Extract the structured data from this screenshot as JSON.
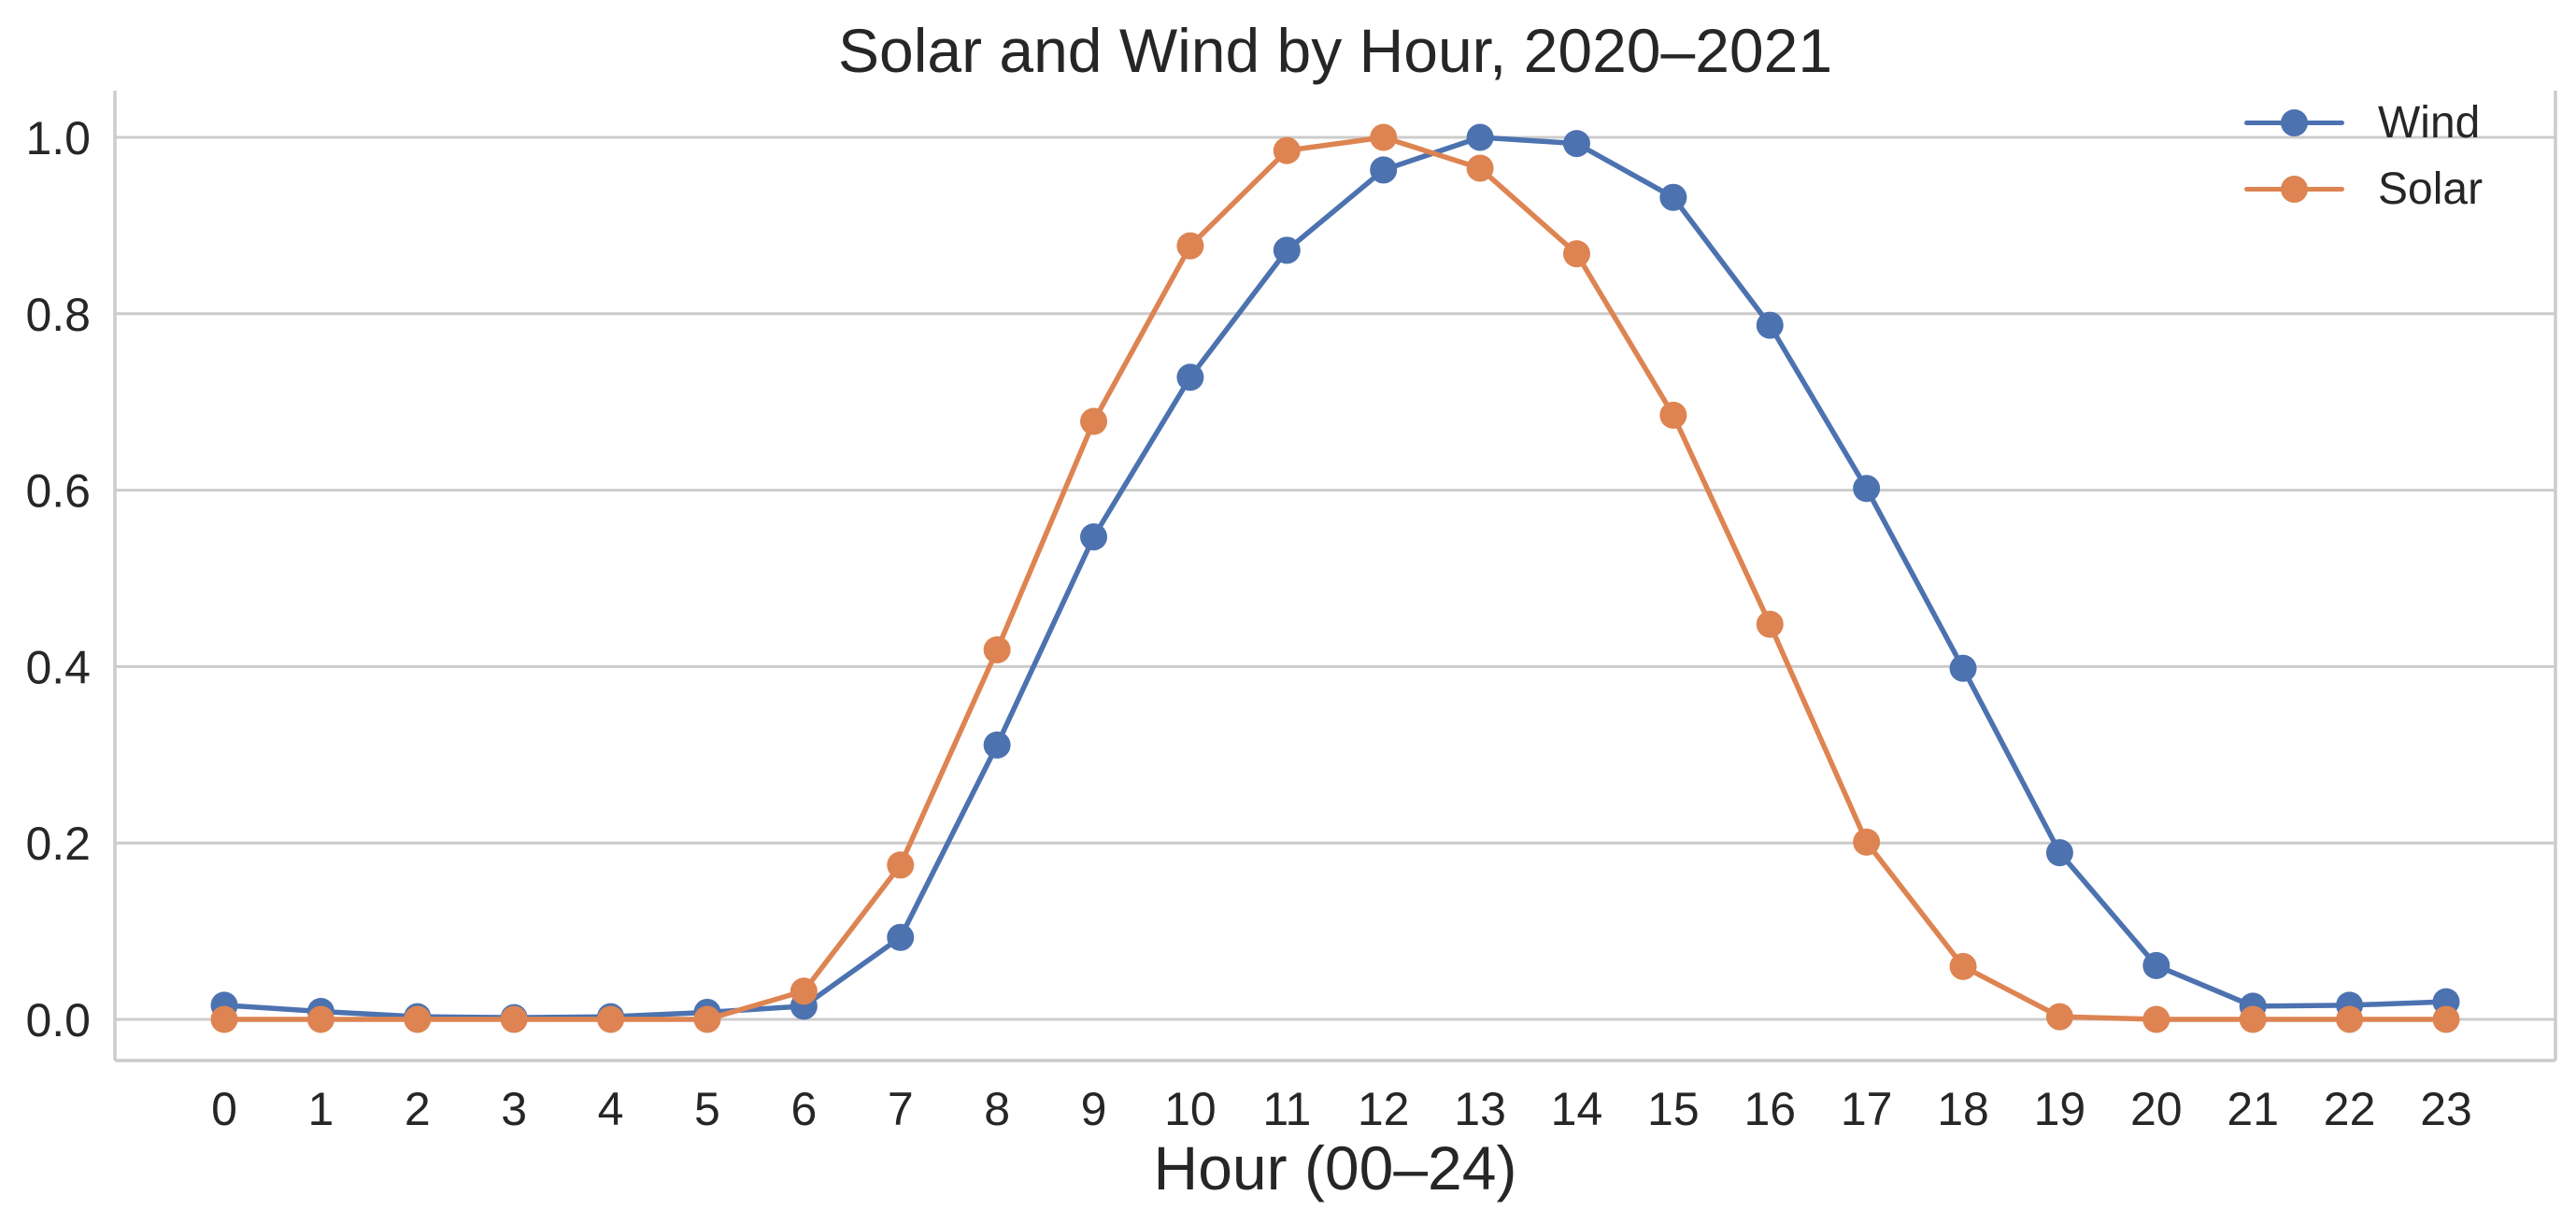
{
  "chart_data": {
    "type": "line",
    "title": "Solar and Wind by Hour, 2020–2021",
    "xlabel": "Hour (00–24)",
    "ylabel": "",
    "x": [
      0,
      1,
      2,
      3,
      4,
      5,
      6,
      7,
      8,
      9,
      10,
      11,
      12,
      13,
      14,
      15,
      16,
      17,
      18,
      19,
      20,
      21,
      22,
      23
    ],
    "series": [
      {
        "name": "Wind",
        "color": "#4C72B0",
        "values": [
          0.016,
          0.009,
          0.003,
          0.002,
          0.003,
          0.008,
          0.015,
          0.093,
          0.311,
          0.547,
          0.728,
          0.872,
          0.963,
          1.0,
          0.993,
          0.932,
          0.787,
          0.602,
          0.398,
          0.189,
          0.061,
          0.015,
          0.016,
          0.02
        ]
      },
      {
        "name": "Solar",
        "color": "#DD8452",
        "values": [
          0.0,
          0.0,
          0.0,
          0.0,
          0.0,
          0.0,
          0.032,
          0.175,
          0.419,
          0.678,
          0.877,
          0.985,
          1.0,
          0.965,
          0.868,
          0.685,
          0.448,
          0.201,
          0.06,
          0.003,
          0.0,
          0.0,
          0.0,
          0.0
        ]
      }
    ],
    "xtick_labels": [
      "0",
      "1",
      "2",
      "3",
      "4",
      "5",
      "6",
      "7",
      "8",
      "9",
      "10",
      "11",
      "12",
      "13",
      "14",
      "15",
      "16",
      "17",
      "18",
      "19",
      "20",
      "21",
      "22",
      "23"
    ],
    "ytick_values": [
      0.0,
      0.2,
      0.4,
      0.6,
      0.8,
      1.0
    ],
    "ytick_labels": [
      "0.0",
      "0.2",
      "0.4",
      "0.6",
      "0.8",
      "1.0"
    ],
    "ylim": [
      -0.047,
      1.047
    ],
    "xlim": [
      -1.13,
      24.13
    ],
    "grid": "horizontal-only",
    "legend_position": "upper-right",
    "marker": "circle"
  },
  "colors": {
    "grid": "#cccccc",
    "spine": "#cccccc",
    "text": "#262626",
    "background": "#ffffff"
  }
}
